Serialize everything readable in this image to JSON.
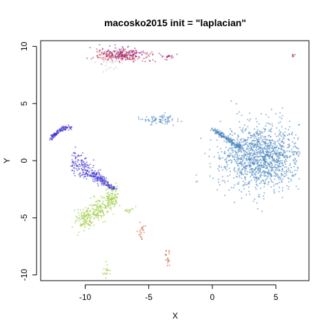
{
  "chart_data": {
    "type": "scatter",
    "title": "macosko2015 init = \"laplacian\"",
    "xlabel": "X",
    "ylabel": "Y",
    "xlim": [
      -13.5,
      7.6
    ],
    "ylim": [
      -10.5,
      10.5
    ],
    "xticks": [
      -10,
      -5,
      0,
      5
    ],
    "yticks": [
      -10,
      -5,
      0,
      5,
      10
    ],
    "grid": false,
    "legend": "none",
    "clusters": [
      {
        "color": "#4a86c0",
        "center": [
          3.8,
          0.3
        ],
        "spread": [
          1.5,
          1.4
        ],
        "count": 1500,
        "shape": "teardrop"
      },
      {
        "color": "#4a86c0",
        "center": [
          -4.2,
          3.6
        ],
        "spread": [
          0.6,
          0.25
        ],
        "count": 80,
        "shape": "ellipse"
      },
      {
        "color": "#3a2fd0",
        "center": [
          -10.4,
          -0.8
        ],
        "spread": [
          1.0,
          0.8
        ],
        "count": 300,
        "shape": "fan"
      },
      {
        "color": "#3a2fd0",
        "center": [
          -12.0,
          2.4
        ],
        "spread": [
          0.6,
          0.3
        ],
        "count": 110,
        "shape": "arc"
      },
      {
        "color": "#9acb3c",
        "center": [
          -8.8,
          -4.3
        ],
        "spread": [
          1.0,
          0.9
        ],
        "count": 330,
        "shape": "streaks"
      },
      {
        "color": "#9acb3c",
        "center": [
          -6.6,
          -4.3
        ],
        "spread": [
          0.25,
          0.15
        ],
        "count": 15,
        "shape": "ellipse"
      },
      {
        "color": "#9acb3c",
        "center": [
          -8.3,
          -9.5
        ],
        "spread": [
          0.15,
          0.35
        ],
        "count": 18,
        "shape": "ellipse"
      },
      {
        "color": "#c0172f",
        "center": [
          -7.2,
          9.2
        ],
        "spread": [
          1.0,
          0.25
        ],
        "count": 160,
        "shape": "ellipse"
      },
      {
        "color": "#8a2b8e",
        "center": [
          -7.0,
          9.3
        ],
        "spread": [
          0.9,
          0.3
        ],
        "count": 120,
        "shape": "ellipse"
      },
      {
        "color": "#9a1f6a",
        "center": [
          -3.4,
          9.1
        ],
        "spread": [
          0.25,
          0.1
        ],
        "count": 20,
        "shape": "ellipse"
      },
      {
        "color": "#9a1f6a",
        "center": [
          6.3,
          9.2
        ],
        "spread": [
          0.08,
          0.08
        ],
        "count": 6,
        "shape": "ellipse"
      },
      {
        "color": "#d05a2e",
        "center": [
          -5.6,
          -6.3
        ],
        "spread": [
          0.12,
          0.45
        ],
        "count": 20,
        "shape": "ellipse"
      },
      {
        "color": "#d05a2e",
        "center": [
          -3.5,
          -8.4
        ],
        "spread": [
          0.1,
          0.35
        ],
        "count": 18,
        "shape": "ellipse"
      },
      {
        "color": "#bcbcbc",
        "center": [
          -8.2,
          8.6
        ],
        "spread": [
          0.6,
          0.5
        ],
        "count": 20,
        "shape": "ellipse"
      }
    ]
  }
}
